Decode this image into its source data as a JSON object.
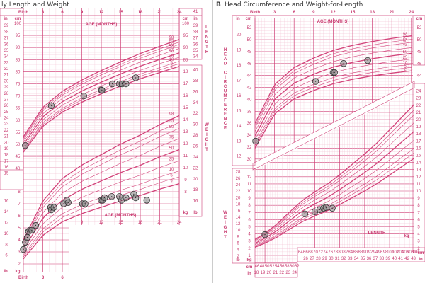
{
  "colors": {
    "major": "#cf3f76",
    "minor": "#f2bfd1",
    "curve": "#d2437a",
    "point_fill": "#8a8a8a",
    "point_stroke": "#333333",
    "frame": "#999999"
  },
  "chart_data": [
    {
      "type": "line",
      "panel": "A",
      "title": "ly Length and Weight",
      "xlabel": "AGE (MONTHS)",
      "x_ticks": [
        "Birth",
        "3",
        "6",
        "9",
        "12",
        "15",
        "18",
        "21",
        "24"
      ],
      "x_ticks_bottom": [
        "Birth",
        "3",
        "6"
      ],
      "x_ticks_mid": [
        "9",
        "12",
        "15",
        "18",
        "21",
        "24"
      ],
      "xlim": [
        0,
        24
      ],
      "length": {
        "ylabel": "LENGTH",
        "unit_cm": "cm",
        "unit_in": "in",
        "ylim_cm": [
          45,
          100
        ],
        "cm_ticks": [
          100,
          95,
          90,
          85,
          80,
          75,
          70,
          65,
          60,
          55,
          50,
          45,
          40
        ],
        "in_ticks": [
          39,
          38,
          37,
          36,
          35,
          34,
          33,
          32,
          31,
          30,
          29,
          28,
          27,
          26,
          25,
          24,
          23,
          22,
          21,
          20,
          19,
          18,
          17,
          16,
          15
        ],
        "right_in_ticks": [
          41,
          39,
          38,
          37,
          36,
          35,
          34
        ],
        "median": [
          [
            0,
            49.9
          ],
          [
            3,
            61.4
          ],
          [
            6,
            67.6
          ],
          [
            9,
            72
          ],
          [
            12,
            75.7
          ],
          [
            15,
            79.1
          ],
          [
            18,
            82.3
          ],
          [
            21,
            85.1
          ],
          [
            24,
            87.8
          ]
        ],
        "rel_sd": 0.031,
        "points": [
          [
            0.3,
            49.5
          ],
          [
            4.3,
            66
          ],
          [
            9.3,
            70
          ],
          [
            12,
            72.5
          ],
          [
            12.1,
            72.3
          ],
          [
            13.7,
            75
          ],
          [
            14.8,
            75
          ],
          [
            15.2,
            75
          ],
          [
            15.8,
            75
          ],
          [
            17.3,
            77.5
          ]
        ]
      },
      "weight": {
        "ylabel": "WEIGHT",
        "unit_kg": "kg",
        "unit_lb": "lb",
        "ylim_kg": [
          2,
          18
        ],
        "kg_ticks": [
          18,
          17,
          16,
          15,
          14,
          13,
          12,
          11,
          10,
          9,
          8,
          7,
          6,
          5,
          4,
          3,
          2
        ],
        "left_kg_ticks": [
          8,
          7,
          6,
          5,
          4,
          3,
          2
        ],
        "lb_ticks": [
          16,
          14,
          12,
          10,
          8,
          6
        ],
        "right_lb_ticks": [
          40,
          38,
          36,
          34,
          32,
          30,
          28,
          26,
          24,
          22,
          20,
          18,
          16
        ],
        "median": [
          [
            0,
            3.2
          ],
          [
            3,
            5.8
          ],
          [
            6,
            7.3
          ],
          [
            9,
            8.2
          ],
          [
            12,
            8.9
          ],
          [
            15,
            9.6
          ],
          [
            18,
            10.2
          ],
          [
            21,
            10.9
          ],
          [
            24,
            11.5
          ]
        ],
        "rel_sd": 0.12,
        "points": [
          [
            0,
            3.2
          ],
          [
            0.3,
            3.8
          ],
          [
            0.6,
            4.2
          ],
          [
            0.8,
            4.7
          ],
          [
            1,
            4.8
          ],
          [
            1.3,
            4.8
          ],
          [
            1.9,
            5.2
          ],
          [
            4.2,
            6.7
          ],
          [
            4.3,
            6.5
          ],
          [
            4.7,
            6.7
          ],
          [
            6.2,
            7
          ],
          [
            6.7,
            7.3
          ],
          [
            6.9,
            7.1
          ],
          [
            9.1,
            7
          ],
          [
            9.5,
            7
          ],
          [
            12,
            7.3
          ],
          [
            12.2,
            7.3
          ],
          [
            12.5,
            7.5
          ],
          [
            13.6,
            7.6
          ],
          [
            14.8,
            7.6
          ],
          [
            15.1,
            7.3
          ],
          [
            15.8,
            7.5
          ],
          [
            17,
            7.8
          ],
          [
            17.3,
            7.5
          ],
          [
            19,
            7.3
          ]
        ]
      },
      "percentiles": [
        "98",
        "95",
        "90",
        "75",
        "50",
        "25",
        "10",
        "5",
        "2"
      ]
    },
    {
      "type": "line",
      "panel": "B",
      "panel_letter": "B",
      "title": "Head Circumference and Weight-for-Length",
      "xlabel": "AGE (MONTHS)",
      "x_ticks": [
        "Birth",
        "3",
        "6",
        "9",
        "12",
        "15",
        "18",
        "21",
        "24"
      ],
      "xlim": [
        0,
        24
      ],
      "head": {
        "ylabel": "HEAD CIRCUMFERENCE",
        "unit_cm": "cm",
        "unit_in": "in",
        "ylim_cm": [
          30,
          52
        ],
        "cm_ticks": [
          52,
          50,
          48,
          46,
          44,
          42,
          40,
          38,
          36,
          34,
          32,
          30
        ],
        "right_cm_ticks": [
          52,
          50,
          48,
          46,
          44
        ],
        "in_ticks": [
          20,
          19,
          18,
          17,
          16,
          15,
          14,
          13,
          12
        ],
        "median": [
          [
            0,
            33.9
          ],
          [
            3,
            40
          ],
          [
            6,
            42.7
          ],
          [
            9,
            44.2
          ],
          [
            12,
            45.4
          ],
          [
            15,
            46.2
          ],
          [
            18,
            46.8
          ],
          [
            21,
            47.3
          ],
          [
            24,
            47.7
          ]
        ],
        "rel_sd": 0.03,
        "points": [
          [
            0.1,
            33
          ],
          [
            9.3,
            43
          ],
          [
            12,
            44.5
          ],
          [
            12.2,
            44.5
          ],
          [
            13.6,
            46
          ],
          [
            17.3,
            46.5
          ]
        ]
      },
      "wfl": {
        "xlabel": "LENGTH",
        "ylabel": "WEIGHT",
        "unit_kg": "kg",
        "unit_lb": "lb",
        "unit_cm": "cm",
        "unit_in": "in",
        "xlim_cm": [
          46,
          110
        ],
        "kg_ticks": [
          12,
          11,
          10,
          9,
          8,
          7,
          6,
          5,
          4,
          3,
          2,
          1
        ],
        "right_kg_ticks": [
          24,
          23,
          22,
          21,
          20,
          19,
          18,
          17,
          16,
          15,
          14,
          13,
          12,
          11,
          10,
          9,
          8,
          7,
          6,
          5,
          4,
          3,
          2
        ],
        "lb_ticks": [
          28,
          26,
          24,
          22,
          20,
          18,
          16,
          14,
          12,
          10,
          8,
          6,
          4,
          2
        ],
        "len_cm_low": [
          46,
          48,
          50,
          52,
          54,
          56,
          58,
          60,
          62
        ],
        "len_in_low": [
          18,
          19,
          20,
          21,
          22,
          23,
          24
        ],
        "len_cm_high": [
          64,
          66,
          68,
          70,
          72,
          74,
          76,
          78,
          80,
          82,
          84,
          86,
          88,
          90,
          92,
          94,
          96,
          98,
          100,
          102,
          104,
          106,
          108,
          110
        ],
        "len_in_high": [
          26,
          27,
          28,
          29,
          30,
          31,
          32,
          33,
          34,
          35,
          36,
          37,
          38,
          39,
          40,
          41,
          42,
          43
        ],
        "median": [
          [
            45,
            2.5
          ],
          [
            50,
            3.4
          ],
          [
            55,
            4.5
          ],
          [
            60,
            5.9
          ],
          [
            65,
            7.2
          ],
          [
            70,
            8.2
          ],
          [
            75,
            9.1
          ],
          [
            80,
            10.2
          ],
          [
            85,
            11.4
          ],
          [
            90,
            12.6
          ],
          [
            95,
            13.9
          ],
          [
            100,
            15.4
          ],
          [
            105,
            16.9
          ],
          [
            110,
            18.4
          ]
        ],
        "rel_sd": 0.1,
        "points": [
          [
            50,
            3.9
          ],
          [
            66,
            6.8
          ],
          [
            70,
            7.1
          ],
          [
            72,
            7.4
          ],
          [
            73.5,
            7.6
          ],
          [
            74.5,
            7.7
          ],
          [
            77,
            7.6
          ]
        ]
      },
      "percentiles": [
        "98",
        "95",
        "90",
        "75",
        "50",
        "25",
        "10",
        "5",
        "2"
      ]
    }
  ]
}
